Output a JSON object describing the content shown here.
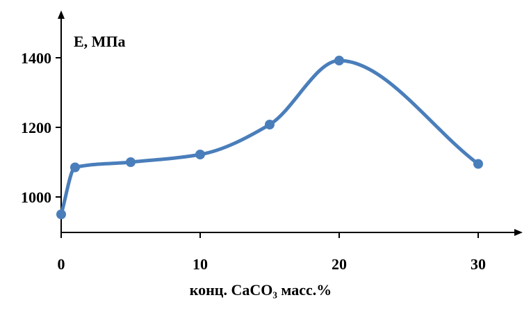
{
  "chart_data": {
    "type": "line",
    "title": "",
    "xlabel": "конц. CaCO₃ масс.%",
    "ylabel": "E, МПа",
    "x": [
      0,
      1,
      5,
      10,
      15,
      20,
      30
    ],
    "series": [
      {
        "values": [
          950,
          1085,
          1100,
          1122,
          1208,
          1392,
          1095
        ],
        "color": "#4a7ebb"
      }
    ],
    "xticks": [
      "0",
      "10",
      "20",
      "30"
    ],
    "xtick_values": [
      0,
      10,
      20,
      30
    ],
    "yticks": [
      "1000",
      "1200",
      "1400"
    ],
    "ytick_values": [
      1000,
      1200,
      1400
    ],
    "xlim": [
      0,
      33
    ],
    "ylim": [
      900,
      1530
    ],
    "grid": false,
    "legend": "none",
    "smooth": true
  }
}
